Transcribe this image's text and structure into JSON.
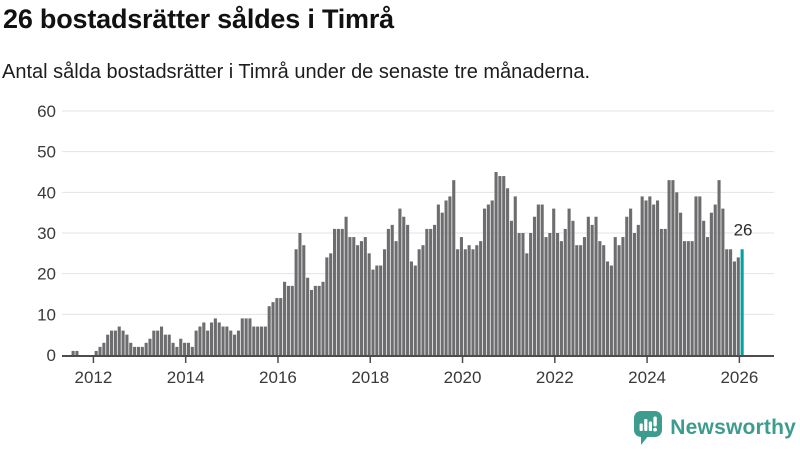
{
  "header": {
    "title": "26 bostadsrätter såldes i Timrå",
    "subtitle": "Antal sålda bostadsrätter i Timrå under de senaste tre månaderna."
  },
  "chart_data": {
    "type": "bar",
    "title": "26 bostadsrätter såldes i Timrå",
    "subtitle": "Antal sålda bostadsrätter i Timrå under de senaste tre månaderna.",
    "ylim": [
      0,
      60
    ],
    "y_ticks": [
      0,
      10,
      20,
      30,
      40,
      50,
      60
    ],
    "x_tick_labels": [
      "2012",
      "2014",
      "2016",
      "2018",
      "2020",
      "2022",
      "2024",
      "2026"
    ],
    "grid": true,
    "frequency": "monthly",
    "start_month": "2011-06",
    "bar_color": "#6d6d70",
    "values": [
      0,
      1,
      1,
      0,
      0,
      0,
      0,
      1,
      2,
      3,
      5,
      6,
      6,
      7,
      6,
      5,
      3,
      2,
      2,
      2,
      3,
      4,
      6,
      6,
      7,
      5,
      5,
      3,
      2,
      4,
      3,
      3,
      2,
      6,
      7,
      8,
      6,
      8,
      9,
      8,
      7,
      7,
      6,
      5,
      6,
      9,
      9,
      9,
      7,
      7,
      7,
      7,
      12,
      13,
      14,
      14,
      18,
      17,
      17,
      26,
      30,
      27,
      19,
      16,
      17,
      17,
      18,
      24,
      25,
      31,
      31,
      31,
      34,
      29,
      29,
      27,
      28,
      29,
      25,
      21,
      22,
      22,
      26,
      31,
      32,
      28,
      36,
      34,
      32,
      23,
      22,
      26,
      27,
      31,
      31,
      32,
      37,
      35,
      38,
      39,
      43,
      26,
      29,
      26,
      27,
      26,
      27,
      28,
      36,
      37,
      38,
      45,
      44,
      44,
      41,
      33,
      39,
      30,
      30,
      25,
      30,
      34,
      37,
      37,
      29,
      30,
      36,
      30,
      28,
      31,
      36,
      33,
      27,
      27,
      29,
      34,
      32,
      34,
      28,
      27,
      23,
      22,
      29,
      27,
      29,
      34,
      36,
      30,
      32,
      39,
      38,
      39,
      37,
      38,
      31,
      31,
      43,
      43,
      40,
      35,
      28,
      28,
      28,
      39,
      39,
      33,
      29,
      35,
      37,
      43,
      36,
      26,
      26,
      23,
      24,
      26
    ],
    "highlight": {
      "index": 175,
      "value": 26,
      "label": "26",
      "color": "#00a3a1"
    }
  },
  "footer": {
    "brand": "Newsworthy",
    "brand_color": "#3e9c8e"
  }
}
